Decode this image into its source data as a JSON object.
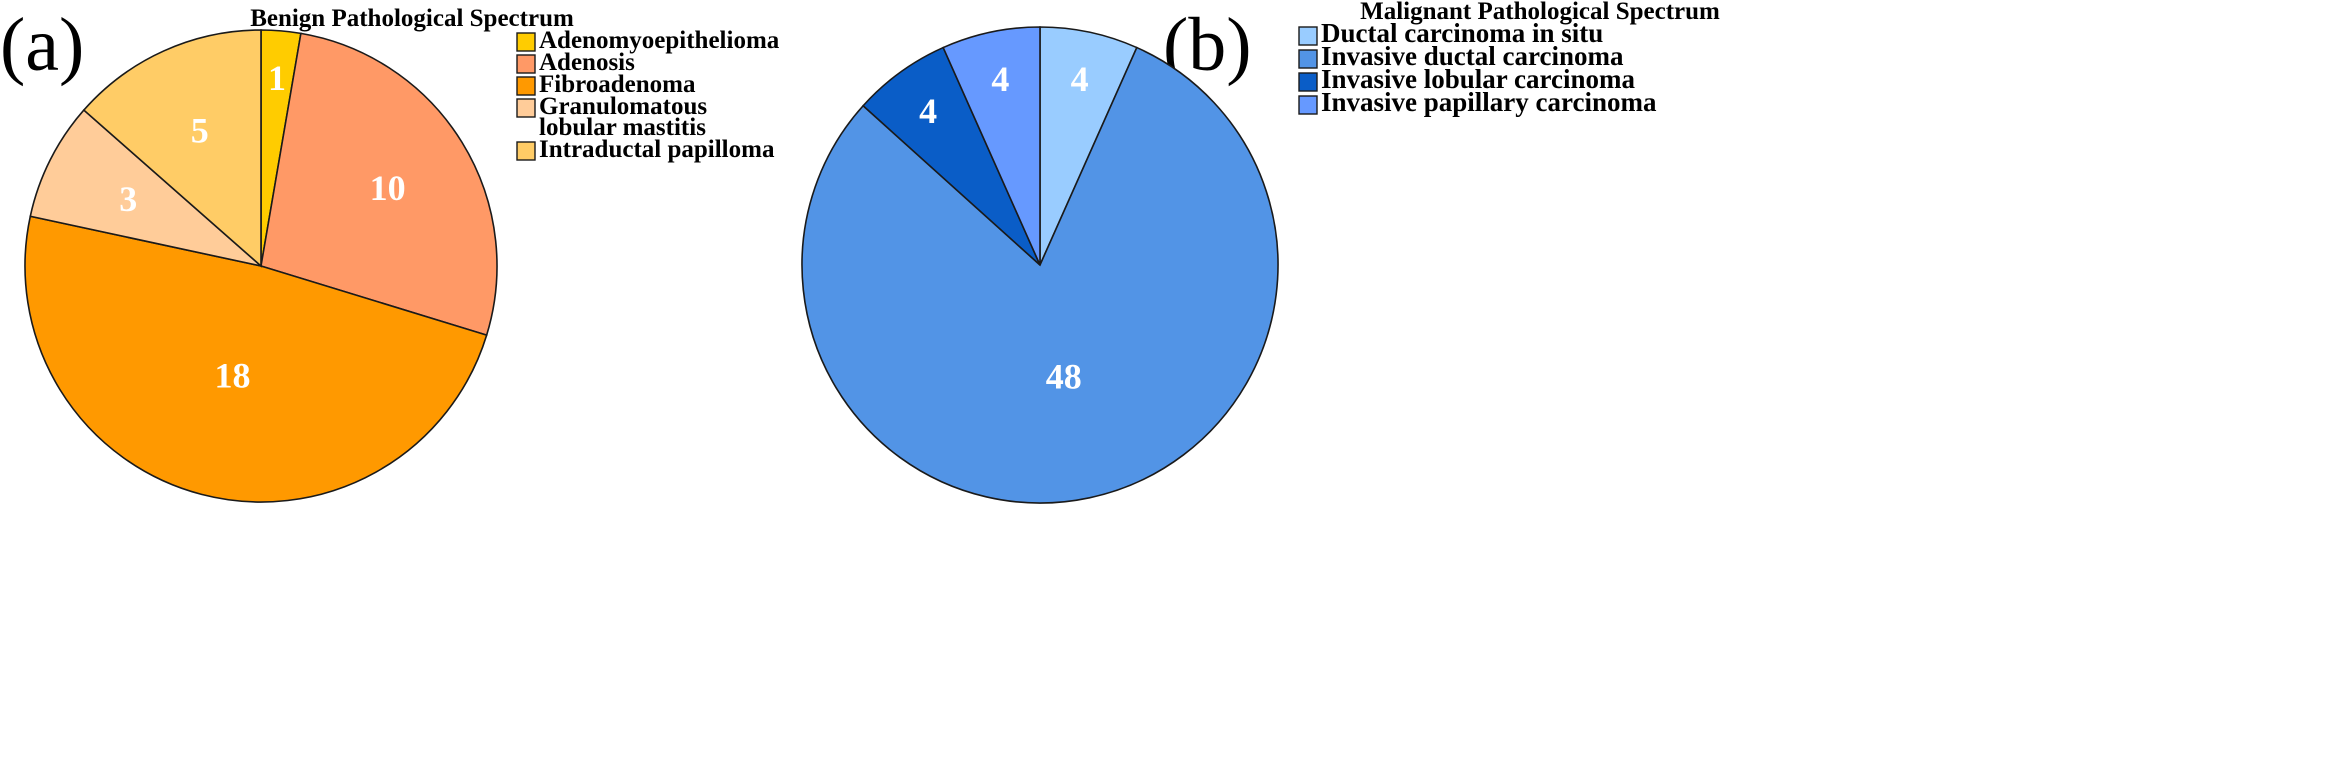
{
  "panels": {
    "a": "(a)",
    "b": "(b)"
  },
  "chart_data": [
    {
      "type": "pie",
      "title": "Benign Pathological Spectrum",
      "categories": [
        "Adenomyoepithelioma",
        "Adenosis",
        "Fibroadenoma",
        "Granulomatous lobular  mastitis",
        "Intraductal papilloma"
      ],
      "legend_lines": [
        [
          "Adenomyoepithelioma"
        ],
        [
          "Adenosis"
        ],
        [
          "Fibroadenoma"
        ],
        [
          "Granulomatous",
          "lobular  mastitis"
        ],
        [
          "Intraductal papilloma"
        ]
      ],
      "values": [
        1,
        10,
        18,
        3,
        5
      ],
      "colors": [
        "#FFCC00",
        "#FF9966",
        "#FF9900",
        "#FFCC99",
        "#FFCC66"
      ],
      "slice_order": [
        0,
        1,
        2,
        3,
        4
      ],
      "legend_position": "right"
    },
    {
      "type": "pie",
      "title": "Malignant Pathological Spectrum",
      "categories": [
        "Ductal carcinoma in situ",
        "Invasive ductal carcinoma",
        "Invasive lobular carcinoma",
        "Invasive papillary carcinoma"
      ],
      "legend_lines": [
        [
          "Ductal carcinoma in situ"
        ],
        [
          "Invasive ductal carcinoma"
        ],
        [
          "Invasive lobular carcinoma"
        ],
        [
          "Invasive papillary carcinoma"
        ]
      ],
      "values": [
        4,
        48,
        4,
        4
      ],
      "colors": [
        "#99CCFF",
        "#5294E6",
        "#0A5DC7",
        "#6699FF"
      ],
      "slice_order": [
        0,
        1,
        2,
        3
      ],
      "legend_position": "right"
    }
  ]
}
